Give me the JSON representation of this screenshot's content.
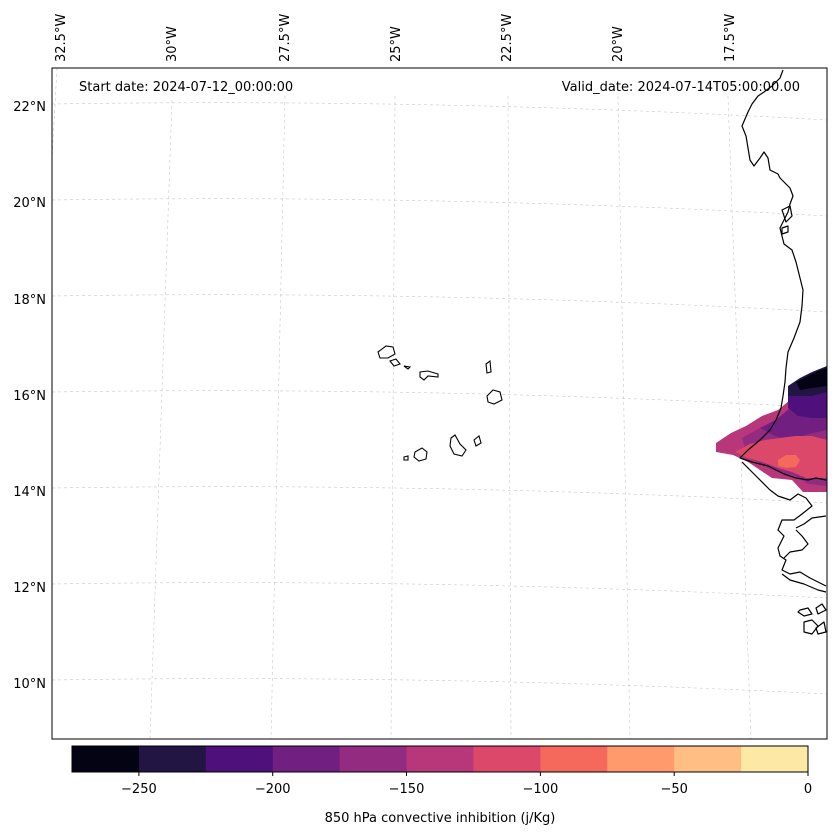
{
  "header": {
    "start_date": "Start date: 2024-07-12_00:00:00",
    "valid_date": "Valid_date: 2024-07-14T05:00:00.00"
  },
  "map": {
    "longitude_labels": [
      "32.5°W",
      "30°W",
      "27.5°W",
      "25°W",
      "22.5°W",
      "20°W",
      "17.5°W"
    ],
    "latitude_labels": [
      "22°N",
      "20°N",
      "18°N",
      "16°N",
      "14°N",
      "12°N",
      "10°N"
    ],
    "gridlines": true,
    "coastline_color": "#000000"
  },
  "colorbar": {
    "label": "850 hPa convective inhibition (j/Kg)",
    "tick_labels": [
      "−250",
      "−200",
      "−150",
      "−100",
      "−50",
      "0"
    ],
    "levels": [
      -275,
      -250,
      -225,
      -200,
      -175,
      -150,
      -125,
      -100,
      -75,
      -50,
      -25,
      0
    ],
    "colors": [
      "#040313",
      "#221543",
      "#4e117b",
      "#711f81",
      "#932b80",
      "#b8367a",
      "#dc4869",
      "#f4695c",
      "#fe9a6b",
      "#febe84",
      "#fde8a6"
    ]
  }
}
